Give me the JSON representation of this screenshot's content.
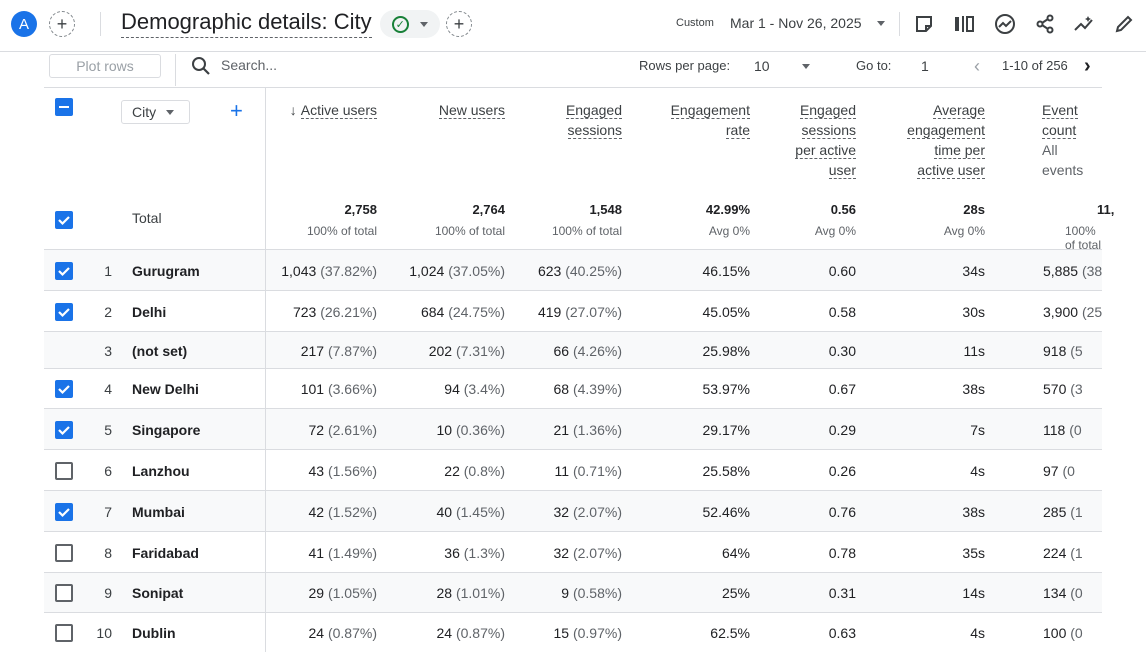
{
  "header": {
    "avatar_letter": "A",
    "title": "Demographic details: City",
    "date_tag": "Custom",
    "date_range": "Mar 1 - Nov 26, 2025",
    "colors": {
      "accent": "#1a73e8",
      "success": "#188038"
    }
  },
  "toolbar": {
    "plot_rows": "Plot rows",
    "search_placeholder": "Search...",
    "rows_per_page_label": "Rows per page:",
    "rows_per_page_value": "10",
    "goto_label": "Go to:",
    "goto_value": "1",
    "page_range": "1-10 of 256"
  },
  "table": {
    "dimension": "City",
    "columns": [
      {
        "key": "active_users",
        "label": [
          "Active users"
        ],
        "sorted": true
      },
      {
        "key": "new_users",
        "label": [
          "New users"
        ]
      },
      {
        "key": "engaged_sessions",
        "label": [
          "Engaged",
          "sessions"
        ]
      },
      {
        "key": "engagement_rate",
        "label": [
          "Engagement",
          "rate"
        ]
      },
      {
        "key": "sessions_per_user",
        "label": [
          "Engaged",
          "sessions",
          "per active",
          "user"
        ]
      },
      {
        "key": "avg_time",
        "label": [
          "Average",
          "engagement",
          "time per",
          "active user"
        ]
      },
      {
        "key": "event_count",
        "label": [
          "Event count"
        ],
        "sub": "All events"
      }
    ],
    "total": {
      "label": "Total",
      "values": [
        "2,758",
        "2,764",
        "1,548",
        "42.99%",
        "0.56",
        "28s",
        "11,"
      ],
      "subs": [
        "100% of total",
        "100% of total",
        "100% of total",
        "Avg 0%",
        "Avg 0%",
        "Avg 0%",
        "100% of total"
      ]
    },
    "rows": [
      {
        "idx": "1",
        "city": "Gurugram",
        "checked": true,
        "active": [
          "1,043",
          "(37.82%)"
        ],
        "new": [
          "1,024",
          "(37.05%)"
        ],
        "sessions": [
          "623",
          "(40.25%)"
        ],
        "rate": "46.15%",
        "spu": "0.60",
        "time": "34s",
        "events": [
          "5,885",
          "(38"
        ]
      },
      {
        "idx": "2",
        "city": "Delhi",
        "checked": true,
        "active": [
          "723",
          "(26.21%)"
        ],
        "new": [
          "684",
          "(24.75%)"
        ],
        "sessions": [
          "419",
          "(27.07%)"
        ],
        "rate": "45.05%",
        "spu": "0.58",
        "time": "30s",
        "events": [
          "3,900",
          "(25"
        ]
      },
      {
        "idx": "3",
        "city": "(not set)",
        "checked": null,
        "active": [
          "217",
          "(7.87%)"
        ],
        "new": [
          "202",
          "(7.31%)"
        ],
        "sessions": [
          "66",
          "(4.26%)"
        ],
        "rate": "25.98%",
        "spu": "0.30",
        "time": "11s",
        "events": [
          "918",
          "(5"
        ]
      },
      {
        "idx": "4",
        "city": "New Delhi",
        "checked": true,
        "active": [
          "101",
          "(3.66%)"
        ],
        "new": [
          "94",
          "(3.4%)"
        ],
        "sessions": [
          "68",
          "(4.39%)"
        ],
        "rate": "53.97%",
        "spu": "0.67",
        "time": "38s",
        "events": [
          "570",
          "(3"
        ]
      },
      {
        "idx": "5",
        "city": "Singapore",
        "checked": true,
        "active": [
          "72",
          "(2.61%)"
        ],
        "new": [
          "10",
          "(0.36%)"
        ],
        "sessions": [
          "21",
          "(1.36%)"
        ],
        "rate": "29.17%",
        "spu": "0.29",
        "time": "7s",
        "events": [
          "118",
          "(0"
        ]
      },
      {
        "idx": "6",
        "city": "Lanzhou",
        "checked": false,
        "active": [
          "43",
          "(1.56%)"
        ],
        "new": [
          "22",
          "(0.8%)"
        ],
        "sessions": [
          "11",
          "(0.71%)"
        ],
        "rate": "25.58%",
        "spu": "0.26",
        "time": "4s",
        "events": [
          "97",
          "(0"
        ]
      },
      {
        "idx": "7",
        "city": "Mumbai",
        "checked": true,
        "active": [
          "42",
          "(1.52%)"
        ],
        "new": [
          "40",
          "(1.45%)"
        ],
        "sessions": [
          "32",
          "(2.07%)"
        ],
        "rate": "52.46%",
        "spu": "0.76",
        "time": "38s",
        "events": [
          "285",
          "(1"
        ]
      },
      {
        "idx": "8",
        "city": "Faridabad",
        "checked": false,
        "active": [
          "41",
          "(1.49%)"
        ],
        "new": [
          "36",
          "(1.3%)"
        ],
        "sessions": [
          "32",
          "(2.07%)"
        ],
        "rate": "64%",
        "spu": "0.78",
        "time": "35s",
        "events": [
          "224",
          "(1"
        ]
      },
      {
        "idx": "9",
        "city": "Sonipat",
        "checked": false,
        "active": [
          "29",
          "(1.05%)"
        ],
        "new": [
          "28",
          "(1.01%)"
        ],
        "sessions": [
          "9",
          "(0.58%)"
        ],
        "rate": "25%",
        "spu": "0.31",
        "time": "14s",
        "events": [
          "134",
          "(0"
        ]
      },
      {
        "idx": "10",
        "city": "Dublin",
        "checked": false,
        "active": [
          "24",
          "(0.87%)"
        ],
        "new": [
          "24",
          "(0.87%)"
        ],
        "sessions": [
          "15",
          "(0.97%)"
        ],
        "rate": "62.5%",
        "spu": "0.63",
        "time": "4s",
        "events": [
          "100",
          "(0"
        ]
      }
    ]
  }
}
